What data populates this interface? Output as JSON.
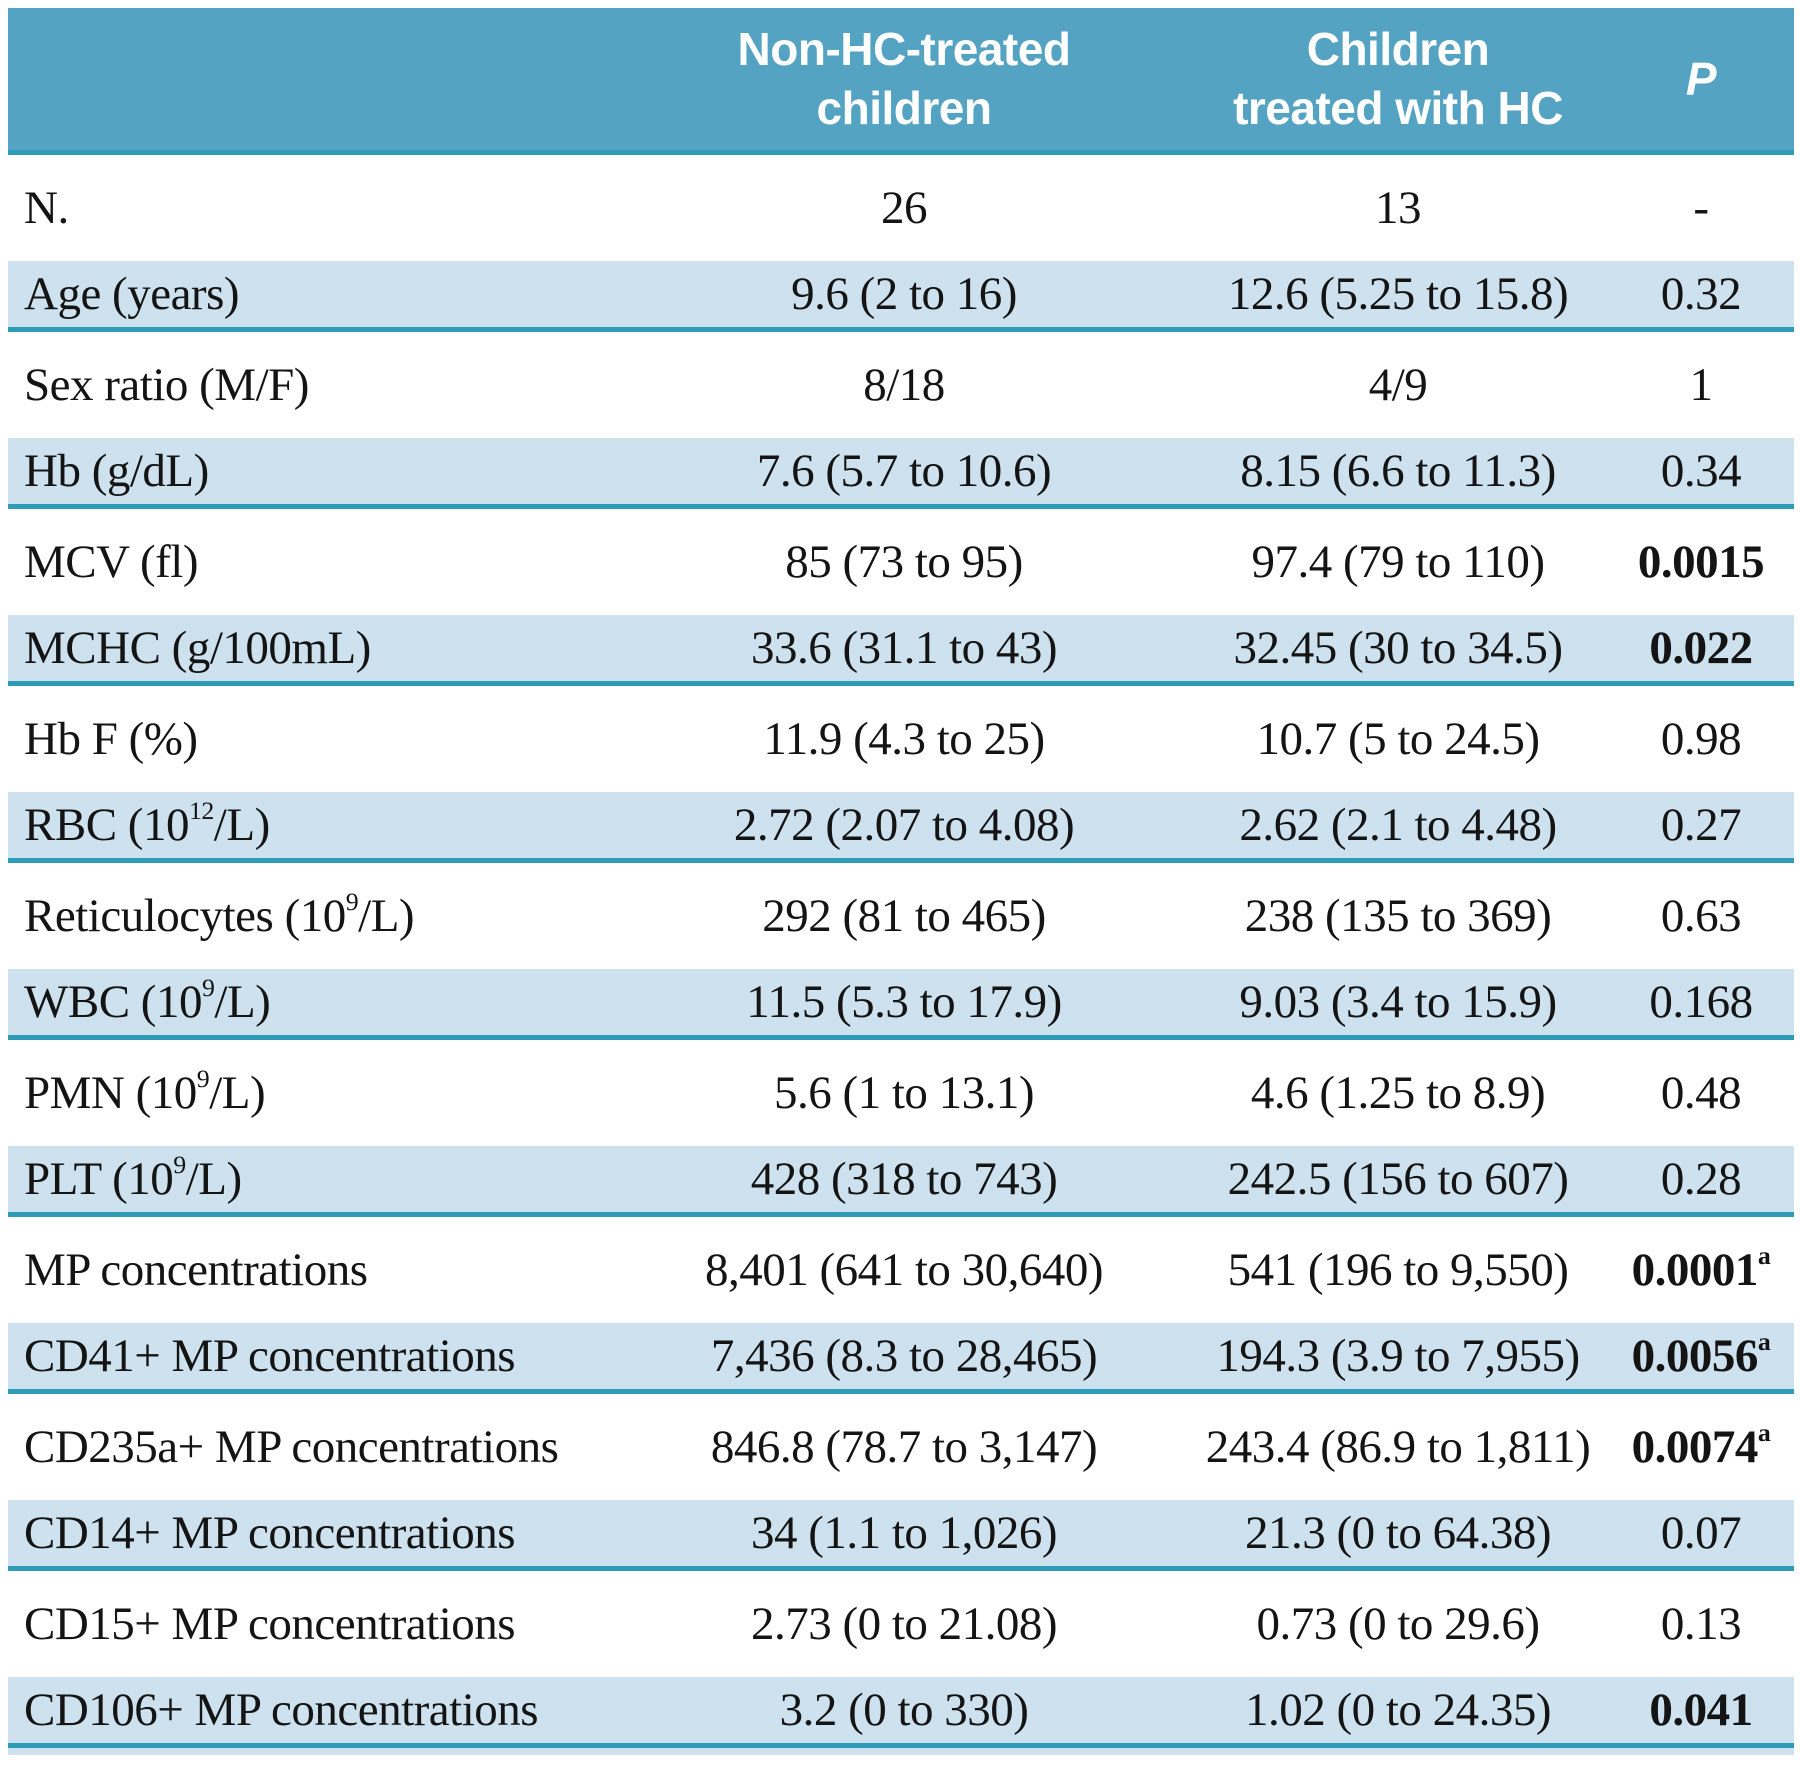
{
  "colors": {
    "header_bg": "#55a3c3",
    "header_text": "#ffffff",
    "row_shaded_bg": "#cde2ee",
    "divider": "#2e9cb6",
    "text": "#141414"
  },
  "header": {
    "col_label": "",
    "col_group1": "Non-HC-treated\nchildren",
    "col_group2": "Children\ntreated with HC",
    "col_p": "P"
  },
  "table": {
    "rows": [
      {
        "label": "N.",
        "group1": "26",
        "group2": "13",
        "p": "-",
        "p_bold": false,
        "shaded": false
      },
      {
        "label": "Age (years)",
        "group1": "9.6 (2 to 16)",
        "group2": "12.6 (5.25 to 15.8)",
        "p": "0.32",
        "p_bold": false,
        "shaded": true
      },
      {
        "label": "Sex ratio (M/F)",
        "group1": "8/18",
        "group2": "4/9",
        "p": "1",
        "p_bold": false,
        "shaded": false
      },
      {
        "label": "Hb (g/dL)",
        "group1": "7.6 (5.7 to 10.6)",
        "group2": "8.15 (6.6 to 11.3)",
        "p": "0.34",
        "p_bold": false,
        "shaded": true
      },
      {
        "label": "MCV (fl)",
        "group1": "85 (73 to 95)",
        "group2": "97.4 (79 to 110)",
        "p": "0.0015",
        "p_bold": true,
        "shaded": false
      },
      {
        "label": "MCHC (g/100mL)",
        "group1": "33.6 (31.1 to 43)",
        "group2": "32.45 (30 to 34.5)",
        "p": "0.022",
        "p_bold": true,
        "shaded": true
      },
      {
        "label": "Hb F (%)",
        "group1": "11.9 (4.3 to 25)",
        "group2": "10.7 (5 to 24.5)",
        "p": "0.98",
        "p_bold": false,
        "shaded": false
      },
      {
        "label": "RBC (10^{12}/L)",
        "group1": "2.72 (2.07 to 4.08)",
        "group2": "2.62 (2.1 to 4.48)",
        "p": "0.27",
        "p_bold": false,
        "shaded": true
      },
      {
        "label": "Reticulocytes (10^{9}/L)",
        "group1": "292 (81 to 465)",
        "group2": "238 (135 to 369)",
        "p": "0.63",
        "p_bold": false,
        "shaded": false
      },
      {
        "label": "WBC (10^{9}/L)",
        "group1": "11.5 (5.3 to 17.9)",
        "group2": "9.03 (3.4 to 15.9)",
        "p": "0.168",
        "p_bold": false,
        "shaded": true
      },
      {
        "label": "PMN (10^{9}/L)",
        "group1": "5.6 (1 to 13.1)",
        "group2": "4.6 (1.25 to 8.9)",
        "p": "0.48",
        "p_bold": false,
        "shaded": false
      },
      {
        "label": "PLT (10^{9}/L)",
        "group1": "428 (318 to 743)",
        "group2": "242.5 (156 to 607)",
        "p": "0.28",
        "p_bold": false,
        "shaded": true
      },
      {
        "label": "MP concentrations",
        "group1": "8,401 (641 to 30,640)",
        "group2": "541 (196 to 9,550)",
        "p": "0.0001^{a}",
        "p_bold": true,
        "shaded": false
      },
      {
        "label": "CD41+ MP concentrations",
        "group1": "7,436 (8.3 to 28,465)",
        "group2": "194.3 (3.9 to 7,955)",
        "p": "0.0056^{a}",
        "p_bold": true,
        "shaded": true
      },
      {
        "label": "CD235a+ MP concentrations",
        "group1": "846.8 (78.7 to 3,147)",
        "group2": "243.4 (86.9 to 1,811)",
        "p": "0.0074^{a}",
        "p_bold": true,
        "shaded": false
      },
      {
        "label": "CD14+ MP concentrations",
        "group1": "34 (1.1 to 1,026)",
        "group2": "21.3 (0 to 64.38)",
        "p": "0.07",
        "p_bold": false,
        "shaded": true
      },
      {
        "label": "CD15+ MP concentrations",
        "group1": "2.73 (0 to 21.08)",
        "group2": "0.73 (0 to 29.6)",
        "p": "0.13",
        "p_bold": false,
        "shaded": false
      },
      {
        "label": "CD106+ MP concentrations",
        "group1": "3.2 (0 to 330)",
        "group2": "1.02 (0 to 24.35)",
        "p": "0.041",
        "p_bold": true,
        "shaded": true
      }
    ]
  }
}
